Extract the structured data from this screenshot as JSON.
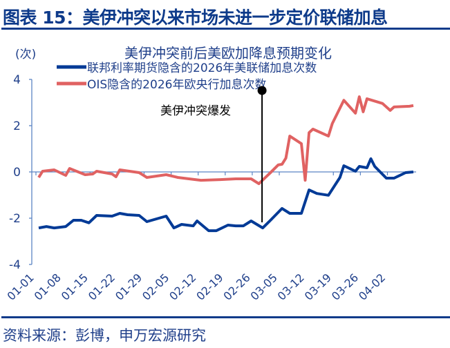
{
  "header": {
    "title": "图表 15：美伊冲突以来市场未进一步定价联储加息"
  },
  "footer": {
    "source": "资料来源：彭博，申万宏源研究"
  },
  "colors": {
    "fed": "#003a96",
    "ecb": "#e06262",
    "axis": "#5b84c4",
    "text": "#1f3f8a"
  },
  "chart_data": {
    "type": "line",
    "title": "美伊冲突前后美欧加降息预期变化",
    "ylabel": "(次)",
    "xlabel": "",
    "ylim": [
      -4,
      4
    ],
    "yticks": [
      "4",
      "2",
      "0",
      "-2",
      "-4"
    ],
    "xlim": [
      "01-01",
      "04-08"
    ],
    "xticks": [
      "01-01",
      "01-08",
      "01-15",
      "01-22",
      "01-29",
      "02-05",
      "02-12",
      "02-19",
      "02-26",
      "03-05",
      "03-12",
      "03-19",
      "03-26",
      "04-02"
    ],
    "grid": false,
    "legend": "top",
    "annotation": {
      "label": "美伊冲突爆发",
      "x": "02-28"
    },
    "series": [
      {
        "name": "联邦利率期货隐含的2026年美联储加息次数",
        "color": "#003a96",
        "x": [
          "01-01",
          "01-03",
          "01-05",
          "01-08",
          "01-10",
          "01-12",
          "01-14",
          "01-16",
          "01-20",
          "01-22",
          "01-24",
          "01-27",
          "01-29",
          "02-03",
          "02-05",
          "02-07",
          "02-10",
          "02-11",
          "02-14",
          "02-16",
          "02-19",
          "02-21",
          "02-23",
          "02-25",
          "02-28",
          "03-02",
          "03-05",
          "03-07",
          "03-10",
          "03-12",
          "03-14",
          "03-17",
          "03-20",
          "03-21",
          "03-24",
          "03-25",
          "03-27",
          "03-28",
          "03-29",
          "04-01",
          "04-03",
          "04-06",
          "04-08"
        ],
        "values": [
          -2.42,
          -2.36,
          -2.42,
          -2.36,
          -2.09,
          -2.09,
          -2.2,
          -1.88,
          -1.91,
          -1.79,
          -1.85,
          -1.88,
          -2.15,
          -1.91,
          -2.42,
          -2.27,
          -2.33,
          -2.12,
          -2.54,
          -2.54,
          -2.3,
          -2.33,
          -2.33,
          -2.12,
          -2.42,
          -2.09,
          -1.58,
          -1.79,
          -1.79,
          -0.78,
          -0.93,
          -1.01,
          -0.24,
          0.27,
          0.03,
          0.24,
          0.18,
          0.57,
          0.24,
          -0.27,
          -0.27,
          -0.03,
          0
        ]
      },
      {
        "name": "OIS隐含的2026年欧央行加息次数",
        "color": "#e06262",
        "x": [
          "01-01",
          "01-02",
          "01-05",
          "01-08",
          "01-09",
          "01-13",
          "01-15",
          "01-16",
          "01-20",
          "01-21",
          "01-22",
          "01-27",
          "01-29",
          "02-03",
          "02-06",
          "02-12",
          "02-17",
          "02-21",
          "02-25",
          "02-27",
          "03-02",
          "03-04",
          "03-05",
          "03-06",
          "03-07",
          "03-10",
          "03-11",
          "03-12",
          "03-13",
          "03-17",
          "03-18",
          "03-21",
          "03-24",
          "03-25",
          "03-26",
          "03-27",
          "03-31",
          "04-02",
          "04-03",
          "04-07",
          "04-08"
        ],
        "values": [
          -0.24,
          0.03,
          0.09,
          -0.15,
          0.15,
          -0.12,
          -0.09,
          0.03,
          -0.09,
          -0.21,
          0.09,
          -0.03,
          -0.24,
          -0.12,
          -0.24,
          -0.36,
          -0.33,
          -0.3,
          -0.3,
          -0.51,
          -0.03,
          0.3,
          0.33,
          0.6,
          1.55,
          1.22,
          -0.36,
          1.7,
          1.85,
          1.55,
          2.09,
          3.1,
          2.54,
          3.25,
          2.6,
          3.16,
          2.96,
          2.66,
          2.81,
          2.84,
          2.87
        ]
      }
    ]
  }
}
